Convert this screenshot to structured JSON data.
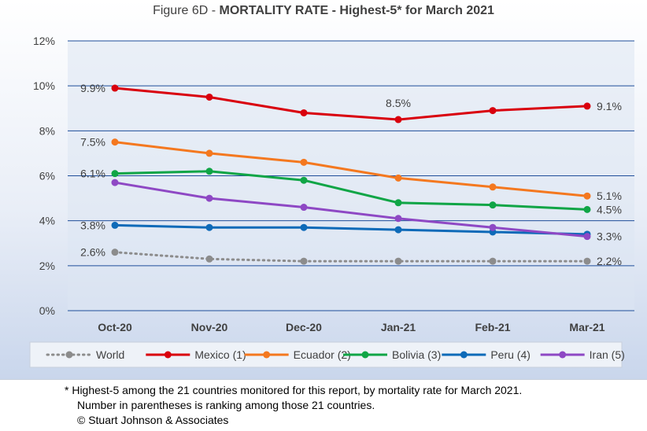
{
  "title_prefix": "Figure 6D  - ",
  "title_main": "MORTALITY RATE - Highest-5* for March 2021",
  "footnote": [
    "* Highest-5 among the 21 countries monitored for this report, by mortality rate for March 2021.",
    "Number in parentheses is ranking among those 21 countries.",
    "© Stuart Johnson & Associates"
  ],
  "chart_data": {
    "type": "line",
    "title": "Figure 6D  - MORTALITY RATE - Highest-5* for March 2021",
    "categories": [
      "Oct-20",
      "Nov-20",
      "Dec-20",
      "Jan-21",
      "Feb-21",
      "Mar-21"
    ],
    "ylim": [
      0,
      12
    ],
    "yticks": [
      "0%",
      "2%",
      "4%",
      "6%",
      "8%",
      "10%",
      "12%"
    ],
    "grid": true,
    "legend": "bottom",
    "series": [
      {
        "name": "World",
        "color": "#8c8c8c",
        "dashed": true,
        "values": [
          2.6,
          2.3,
          2.2,
          2.2,
          2.2,
          2.2
        ]
      },
      {
        "name": "Mexico (1)",
        "color": "#d9000d",
        "values": [
          9.9,
          9.5,
          8.8,
          8.5,
          8.9,
          9.1
        ]
      },
      {
        "name": "Ecuador (2)",
        "color": "#f4781f",
        "values": [
          7.5,
          7.0,
          6.6,
          5.9,
          5.5,
          5.1
        ]
      },
      {
        "name": "Bolivia (3)",
        "color": "#10a546",
        "values": [
          6.1,
          6.2,
          5.8,
          4.8,
          4.7,
          4.5
        ]
      },
      {
        "name": "Peru (4)",
        "color": "#0e6ab8",
        "values": [
          3.8,
          3.7,
          3.7,
          3.6,
          3.5,
          3.4
        ]
      },
      {
        "name": "Iran (5)",
        "color": "#8e48c4",
        "values": [
          5.7,
          5.0,
          4.6,
          4.1,
          3.7,
          3.3
        ]
      }
    ],
    "data_labels": [
      {
        "series": 1,
        "index": 0,
        "text": "9.9%",
        "side": "left"
      },
      {
        "series": 1,
        "index": 3,
        "text": "8.5%",
        "side": "above"
      },
      {
        "series": 1,
        "index": 5,
        "text": "9.1%",
        "side": "right"
      },
      {
        "series": 2,
        "index": 0,
        "text": "7.5%",
        "side": "left"
      },
      {
        "series": 2,
        "index": 5,
        "text": "5.1%",
        "side": "right"
      },
      {
        "series": 3,
        "index": 0,
        "text": "6.1%",
        "side": "left"
      },
      {
        "series": 3,
        "index": 5,
        "text": "4.5%",
        "side": "right"
      },
      {
        "series": 4,
        "index": 0,
        "text": "3.8%",
        "side": "left"
      },
      {
        "series": 5,
        "index": 5,
        "text": "3.3%",
        "side": "right"
      },
      {
        "series": 0,
        "index": 0,
        "text": "2.6%",
        "side": "left"
      },
      {
        "series": 0,
        "index": 5,
        "text": "2.2%",
        "side": "right"
      }
    ]
  }
}
